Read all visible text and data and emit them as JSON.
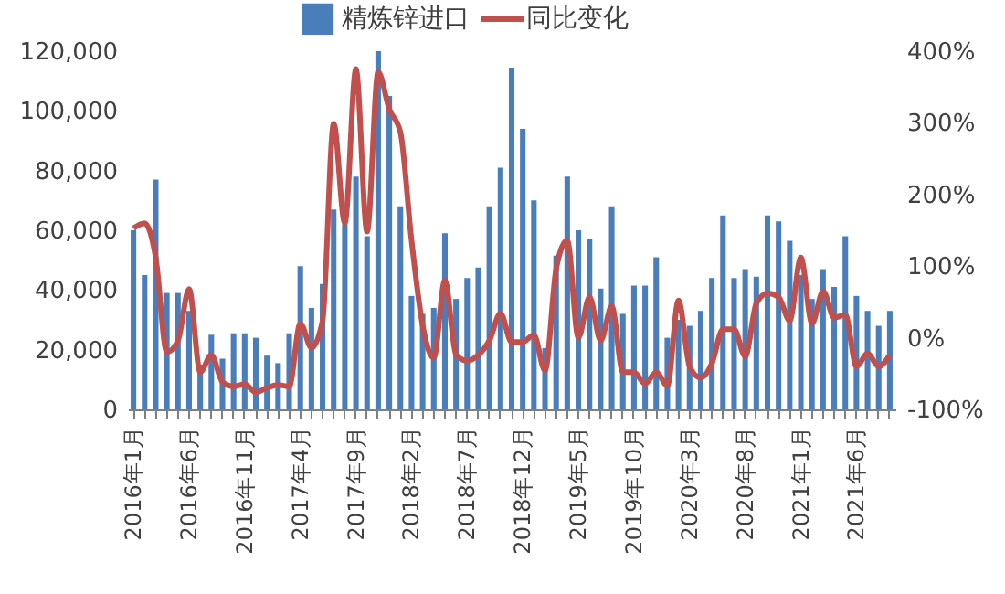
{
  "chart_data": {
    "type": "bar",
    "categories": [
      "2016年1月",
      null,
      null,
      null,
      null,
      "2016年6月",
      null,
      null,
      null,
      null,
      "2016年11月",
      null,
      null,
      null,
      null,
      "2017年4月",
      null,
      null,
      null,
      null,
      "2017年9月",
      null,
      null,
      null,
      null,
      "2018年2月",
      null,
      null,
      null,
      null,
      "2018年7月",
      null,
      null,
      null,
      null,
      "2018年12月",
      null,
      null,
      null,
      null,
      "2019年5月",
      null,
      null,
      null,
      null,
      "2019年10月",
      null,
      null,
      null,
      null,
      "2020年3月",
      null,
      null,
      null,
      null,
      "2020年8月",
      null,
      null,
      null,
      null,
      "2021年1月",
      null,
      null,
      null,
      null,
      "2021年6月",
      null,
      null,
      null
    ],
    "series": [
      {
        "name": "精炼锌进口",
        "color": "#4a7ebb",
        "values": [
          60000,
          45000,
          77000,
          39000,
          39000,
          33000,
          15000,
          25000,
          17000,
          25500,
          25500,
          24000,
          18000,
          15500,
          25500,
          48000,
          34000,
          42000,
          67000,
          62000,
          78000,
          58000,
          120000,
          105000,
          68000,
          38000,
          32000,
          34000,
          59000,
          37000,
          44000,
          47500,
          68000,
          81000,
          114500,
          94000,
          70000,
          20500,
          51500,
          78000,
          60000,
          57000,
          40500,
          68000,
          32000,
          41500,
          41500,
          51000,
          24000,
          30000,
          28000,
          33000,
          44000,
          65000,
          44000,
          47000,
          44500,
          65000,
          63000,
          56500,
          45000,
          37000,
          47000,
          41000,
          58000,
          38000,
          33000,
          28000,
          33000
        ]
      },
      {
        "name": "同比变化",
        "type": "line",
        "axis": "y2",
        "color": "#c0504d",
        "values": [
          153,
          160,
          112,
          -20,
          -4,
          68,
          -48,
          -24,
          -62,
          -68,
          -65,
          -76,
          -70,
          -66,
          -68,
          20,
          -14,
          24,
          299,
          160,
          375,
          148,
          371,
          319,
          287,
          136,
          17,
          -28,
          80,
          -24,
          -32,
          -24,
          -4,
          34,
          -6,
          -6,
          4,
          -46,
          96,
          136,
          0,
          57,
          -4,
          44,
          -48,
          -48,
          -64,
          -48,
          -67,
          52,
          -40,
          -56,
          -36,
          12,
          12,
          -26,
          48,
          62,
          57,
          24,
          112,
          20,
          65,
          28,
          32,
          -40,
          -22,
          -40,
          -24
        ]
      }
    ],
    "ylim": [
      0,
      120000
    ],
    "yticks": [
      0,
      {
        "value": 20000,
        "label": "20,000"
      },
      {
        "value": 40000,
        "label": "40,000"
      },
      {
        "value": 60000,
        "label": "60,000"
      },
      {
        "value": 80000,
        "label": "80,000"
      },
      {
        "value": 100000,
        "label": "100,000"
      },
      {
        "value": 120000,
        "label": "120,000"
      }
    ],
    "y2lim": [
      -100,
      400
    ],
    "y2ticks": [
      {
        "value": -100,
        "label": "-100%"
      },
      {
        "value": 0,
        "label": "0%"
      },
      {
        "value": 100,
        "label": "100%"
      },
      {
        "value": 200,
        "label": "200%"
      },
      {
        "value": 300,
        "label": "300%"
      },
      {
        "value": 400,
        "label": "400%"
      }
    ],
    "grid": false,
    "legend": "top",
    "line_style": "solid",
    "marker": "none"
  }
}
